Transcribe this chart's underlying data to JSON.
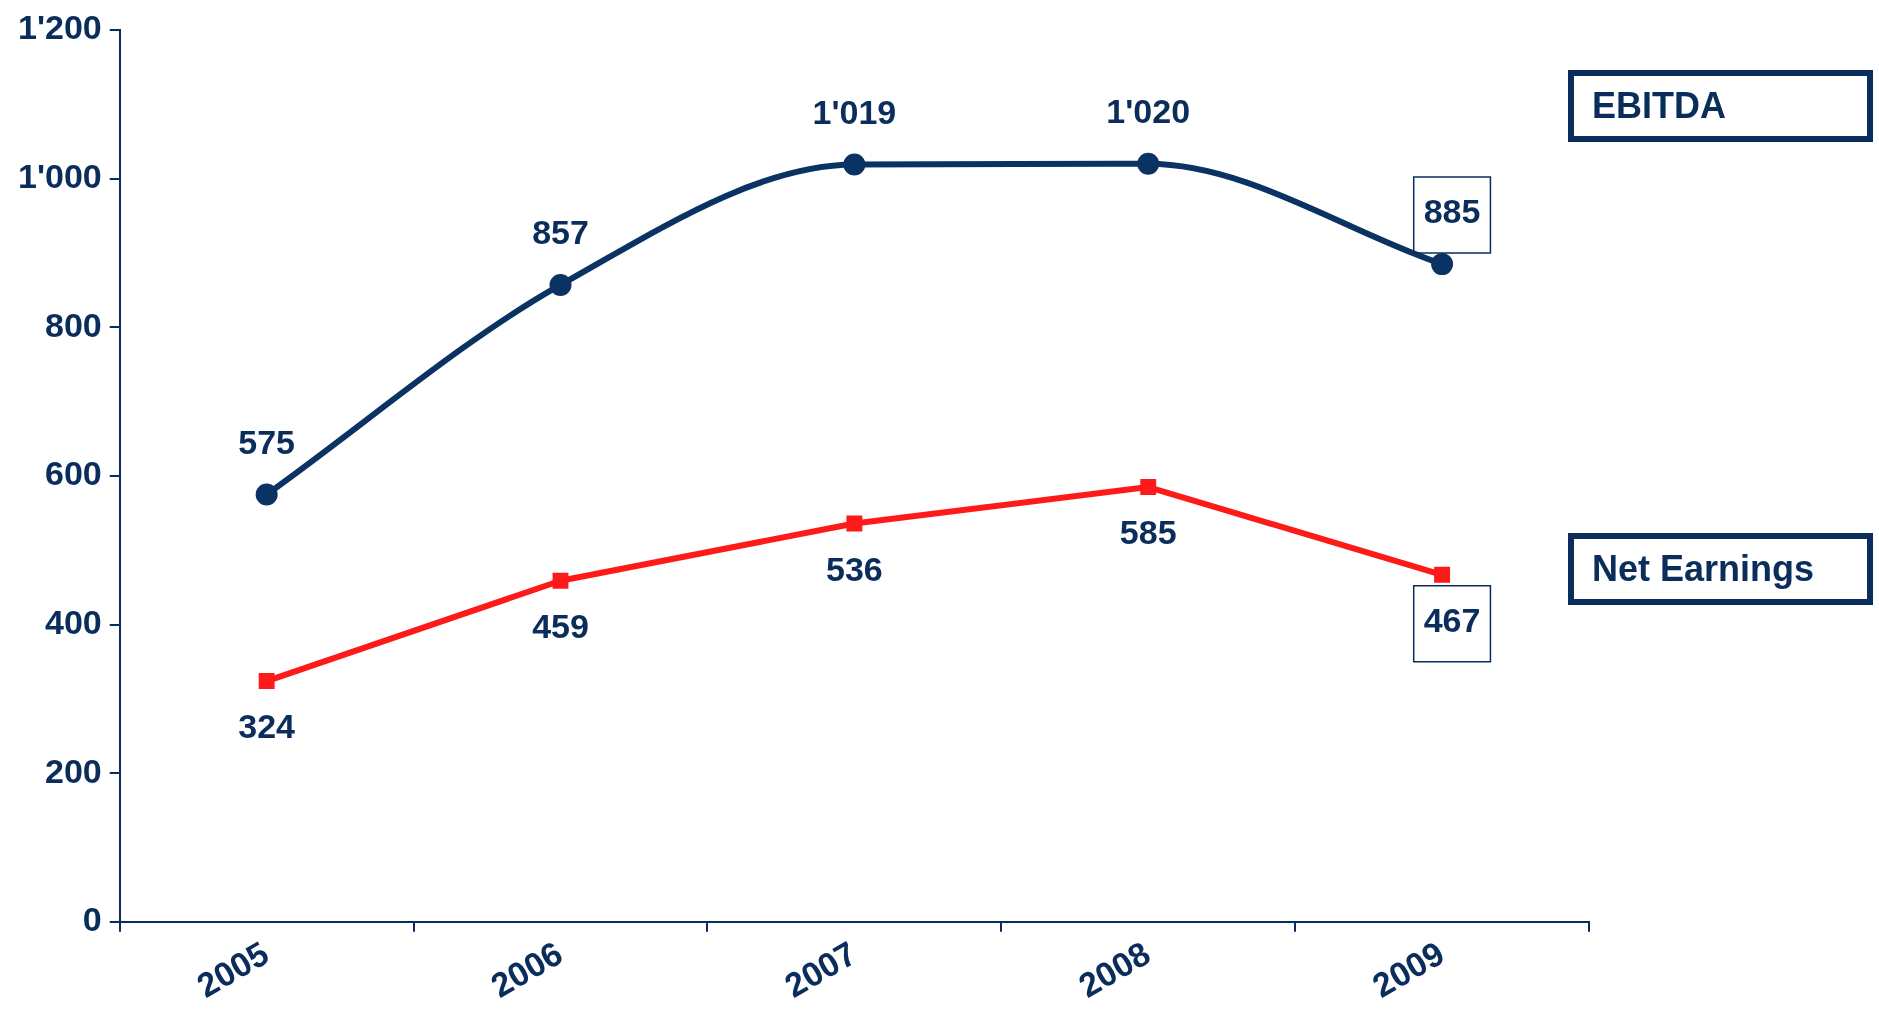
{
  "chart_data": {
    "type": "line",
    "categories": [
      "2005",
      "2006",
      "2007",
      "2008",
      "2009"
    ],
    "series": [
      {
        "name": "EBITDA",
        "color": "#0a3363",
        "marker": "circle",
        "values": [
          575,
          857,
          1019,
          1020,
          885
        ],
        "value_labels": [
          "575",
          "857",
          "1'019",
          "1'020",
          "885"
        ]
      },
      {
        "name": "Net Earnings",
        "color": "#ff1a1a",
        "marker": "square",
        "values": [
          324,
          459,
          536,
          585,
          467
        ],
        "value_labels": [
          "324",
          "459",
          "536",
          "585",
          "467"
        ]
      }
    ],
    "ylim": [
      0,
      1200
    ],
    "yticks": [
      0,
      {
        "value": 200,
        "label": "200"
      },
      400,
      600,
      800,
      {
        "value": 1000,
        "label": "1'000"
      },
      {
        "value": 1200,
        "label": "1'200"
      }
    ],
    "grid": false,
    "legend": "right",
    "line_style": "solid"
  }
}
